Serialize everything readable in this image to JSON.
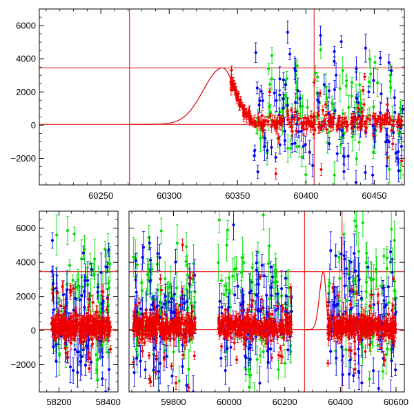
{
  "chart_data": [
    {
      "type": "scatter",
      "title": "",
      "xlabel": "",
      "ylabel": "",
      "xlim": [
        60205,
        60472
      ],
      "ylim": [
        -3600,
        7000
      ],
      "x_ticks": [
        60250,
        60300,
        60350,
        60400,
        60450
      ],
      "y_ticks": [
        -2000,
        0,
        2000,
        4000,
        6000
      ],
      "grid": false,
      "reference_lines": {
        "horizontal": [
          50,
          3450
        ],
        "vertical": [
          60271,
          60406
        ]
      },
      "model_curve": {
        "color": "#e00000",
        "baseline": 50,
        "peak": 3450,
        "peak_x": 60339,
        "rise_start_x": 60271,
        "points": [
          [
            60271,
            50
          ],
          [
            60290,
            120
          ],
          [
            60310,
            600
          ],
          [
            60325,
            2000
          ],
          [
            60333,
            3100
          ],
          [
            60339,
            3450
          ],
          [
            60344,
            3000
          ],
          [
            60350,
            1800
          ],
          [
            60356,
            900
          ],
          [
            60362,
            300
          ],
          [
            60368,
            60
          ]
        ]
      },
      "series": [
        {
          "color": "#00dd00",
          "x_range": [
            60362,
            60472
          ],
          "y_center": 1000,
          "spread": 3000
        },
        {
          "color": "#0000ee",
          "x_range": [
            60362,
            60472
          ],
          "y_center": 500,
          "spread": 3500
        },
        {
          "color": "#ee0000",
          "x_range": [
            60345,
            60472
          ],
          "y_center": 200,
          "spread": 900
        }
      ]
    },
    {
      "type": "scatter",
      "title": "",
      "xlabel": "",
      "ylabel": "",
      "ylim": [
        -3600,
        7000
      ],
      "x_ticks": [
        58200,
        58400,
        59800,
        60000,
        60200,
        60400,
        60600
      ],
      "y_ticks": [
        -2000,
        0,
        2000,
        4000,
        6000
      ],
      "grid": false,
      "broken_axis_segments": [
        {
          "xlim": [
            58120,
            58440
          ],
          "ticks": [
            58200,
            58400
          ]
        },
        {
          "xlim": [
            59640,
            60630
          ],
          "ticks": [
            59800,
            60000,
            60200,
            60400,
            60600
          ]
        }
      ],
      "reference_lines": {
        "horizontal": [
          50,
          3450
        ],
        "vertical": [
          60271,
          60406
        ]
      },
      "model_curve": {
        "color": "#e00000",
        "baseline": 50,
        "peak": 3450,
        "peak_x": 60339
      },
      "clusters": [
        {
          "x_range": [
            58170,
            58410
          ]
        },
        {
          "x_range": [
            59655,
            59880
          ]
        },
        {
          "x_range": [
            59960,
            60225
          ]
        },
        {
          "x_range": [
            60355,
            60600
          ]
        }
      ],
      "series": [
        {
          "color": "#00dd00",
          "y_center": 1500,
          "spread": 3500
        },
        {
          "color": "#0000ee",
          "y_center": 800,
          "spread": 3500
        },
        {
          "color": "#ee0000",
          "y_center": 200,
          "spread": 1500
        }
      ]
    }
  ]
}
